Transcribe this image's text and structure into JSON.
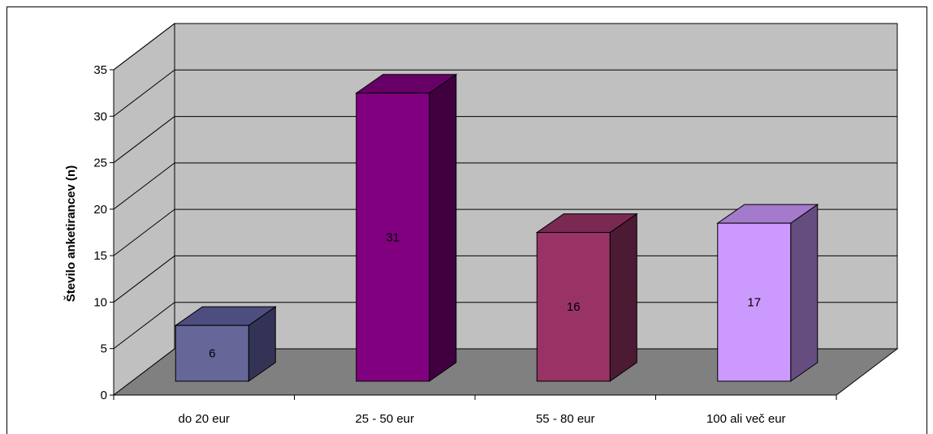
{
  "chart_data": {
    "type": "bar",
    "categories": [
      "do 20 eur",
      "25 - 50 eur",
      "55 - 80 eur",
      "100 ali več eur"
    ],
    "values": [
      6,
      31,
      16,
      17
    ],
    "data_labels": [
      "6",
      "31",
      "16",
      "17"
    ],
    "title": "",
    "xlabel": "",
    "ylabel": "Število anketirancev (n)",
    "ylim": [
      0,
      35
    ],
    "yticks": [
      0,
      5,
      10,
      15,
      20,
      25,
      30,
      35
    ],
    "grid": true,
    "legend": "none",
    "three_d": true,
    "colors": {
      "bars": [
        "#666699",
        "#800080",
        "#993366",
        "#cc99ff"
      ],
      "bar_tops": [
        "#4d4d80",
        "#660066",
        "#7a2952",
        "#a37acc"
      ],
      "bar_sides": [
        "#333355",
        "#400040",
        "#4d1a33",
        "#664d80"
      ],
      "wall": "#c0c0c0",
      "side_wall": "#c0c0c0",
      "floor": "#808080",
      "grid": "#000000"
    }
  }
}
